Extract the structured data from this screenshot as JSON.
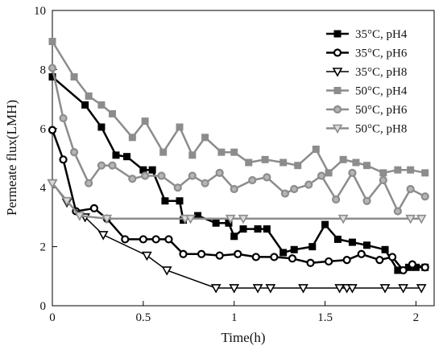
{
  "chart_data": {
    "type": "line",
    "xlabel": "Time(h)",
    "ylabel": "Permeate flux(LMH)",
    "xlim": [
      0,
      2.1
    ],
    "ylim": [
      0,
      10
    ],
    "xticks": [
      0,
      0.5,
      1,
      1.5,
      2
    ],
    "yticks": [
      0,
      2,
      4,
      6,
      8,
      10
    ],
    "xtick_labels": [
      "0",
      "0.5",
      "1",
      "1.5",
      "2"
    ],
    "ytick_labels": [
      "0",
      "2",
      "4",
      "6",
      "8",
      "10"
    ],
    "legend_position": "top-right",
    "grid": false,
    "series": [
      {
        "name": "35°C, pH4",
        "color": "#000000",
        "marker": "square",
        "line_width": 2.5,
        "x": [
          0,
          0.18,
          0.27,
          0.35,
          0.41,
          0.5,
          0.55,
          0.62,
          0.7,
          0.72,
          0.8,
          0.9,
          0.97,
          1.0,
          1.05,
          1.13,
          1.18,
          1.27,
          1.33,
          1.43,
          1.5,
          1.57,
          1.65,
          1.73,
          1.83,
          1.9,
          1.96,
          2.0,
          2.05
        ],
        "y": [
          7.75,
          6.8,
          6.05,
          5.1,
          5.05,
          4.6,
          4.6,
          3.55,
          3.55,
          2.9,
          3.05,
          2.8,
          2.8,
          2.35,
          2.6,
          2.6,
          2.6,
          1.8,
          1.9,
          2.0,
          2.75,
          2.25,
          2.15,
          2.05,
          1.9,
          1.2,
          1.3,
          1.3,
          1.3
        ]
      },
      {
        "name": "35°C, pH6",
        "color": "#000000",
        "marker": "circle",
        "line_width": 2.5,
        "x": [
          0,
          0.06,
          0.13,
          0.23,
          0.3,
          0.4,
          0.5,
          0.57,
          0.64,
          0.72,
          0.82,
          0.92,
          1.02,
          1.12,
          1.22,
          1.32,
          1.42,
          1.52,
          1.62,
          1.7,
          1.8,
          1.87,
          1.93,
          1.98,
          2.05
        ],
        "y": [
          5.95,
          4.95,
          3.2,
          3.3,
          2.95,
          2.25,
          2.25,
          2.25,
          2.25,
          1.75,
          1.75,
          1.7,
          1.75,
          1.65,
          1.65,
          1.6,
          1.45,
          1.5,
          1.55,
          1.75,
          1.55,
          1.65,
          1.2,
          1.4,
          1.3
        ]
      },
      {
        "name": "35°C, pH8",
        "color": "#000000",
        "marker": "triangle-down",
        "line_width": 1.5,
        "x": [
          0,
          0.08,
          0.18,
          0.28,
          0.52,
          0.63,
          0.9,
          1.0,
          1.13,
          1.2,
          1.38,
          1.58,
          1.62,
          1.65,
          1.83,
          1.93,
          2.03
        ],
        "y": [
          4.15,
          3.5,
          3.0,
          2.4,
          1.7,
          1.2,
          0.6,
          0.6,
          0.6,
          0.6,
          0.6,
          0.6,
          0.6,
          0.6,
          0.6,
          0.6,
          0.6
        ]
      },
      {
        "name": "50°C, pH4",
        "color": "#8c8c8c",
        "marker": "square",
        "line_width": 2.5,
        "x": [
          0,
          0.12,
          0.2,
          0.27,
          0.33,
          0.44,
          0.51,
          0.61,
          0.7,
          0.77,
          0.84,
          0.93,
          1.0,
          1.08,
          1.17,
          1.27,
          1.35,
          1.45,
          1.52,
          1.6,
          1.67,
          1.73,
          1.82,
          1.9,
          1.97,
          2.05
        ],
        "y": [
          8.95,
          7.75,
          7.1,
          6.8,
          6.5,
          5.7,
          6.25,
          5.2,
          6.05,
          5.1,
          5.7,
          5.2,
          5.2,
          4.85,
          4.95,
          4.85,
          4.75,
          5.3,
          4.5,
          4.95,
          4.85,
          4.75,
          4.5,
          4.6,
          4.6,
          4.5
        ]
      },
      {
        "name": "50°C, pH6",
        "color": "#8c8c8c",
        "marker": "circle",
        "line_width": 2.5,
        "x": [
          0,
          0.06,
          0.12,
          0.2,
          0.27,
          0.33,
          0.44,
          0.51,
          0.6,
          0.69,
          0.77,
          0.84,
          0.92,
          1.0,
          1.1,
          1.18,
          1.28,
          1.33,
          1.41,
          1.48,
          1.56,
          1.65,
          1.73,
          1.82,
          1.9,
          1.97,
          2.05
        ],
        "y": [
          8.05,
          6.35,
          5.2,
          4.15,
          4.75,
          4.75,
          4.3,
          4.4,
          4.4,
          4.0,
          4.4,
          4.15,
          4.5,
          3.95,
          4.25,
          4.35,
          3.8,
          3.95,
          4.1,
          4.4,
          3.6,
          4.5,
          3.55,
          4.25,
          3.2,
          3.95,
          3.7
        ]
      },
      {
        "name": "50°C, pH8",
        "color": "#8c8c8c",
        "marker": "triangle-down",
        "line_width": 2.5,
        "x": [
          0,
          0.08,
          0.15,
          0.3,
          0.73,
          0.76,
          0.98,
          1.05,
          1.6,
          1.97,
          2.03
        ],
        "y": [
          4.15,
          3.55,
          3.05,
          2.95,
          2.95,
          2.95,
          2.95,
          2.95,
          2.95,
          2.95,
          2.95
        ]
      }
    ]
  }
}
